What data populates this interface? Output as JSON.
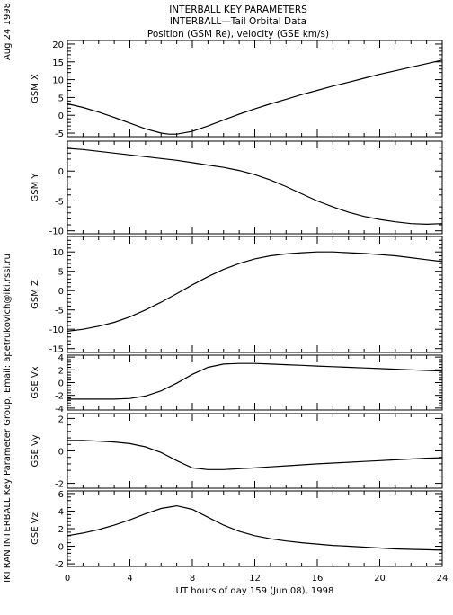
{
  "header": {
    "date_stamp": "Aug 24 1998",
    "side_credit": "IKI RAN INTERBALL Key Parameter Group, Email: apetrukovich@iki.rssi.ru"
  },
  "chart_data": [
    {
      "type": "line",
      "title": [
        "INTERBALL KEY PARAMETERS",
        "INTERBALL—Tail Orbital Data",
        "Position (GSM Re), velocity (GSE km/s)"
      ],
      "ylabel": "GSM X",
      "ylim": [
        -6,
        21
      ],
      "yticks": [
        -5,
        0,
        5,
        10,
        15,
        20
      ],
      "xlim": [
        0,
        24
      ],
      "series": [
        {
          "x": [
            0,
            1,
            2,
            3,
            4,
            5,
            6,
            6.5,
            7,
            8,
            9,
            10,
            11,
            12,
            13,
            14,
            15,
            16,
            17,
            18,
            19,
            20,
            21,
            22,
            23,
            24
          ],
          "y": [
            3.2,
            2.2,
            0.9,
            -0.6,
            -2.2,
            -3.8,
            -5.0,
            -5.3,
            -5.3,
            -4.5,
            -3.0,
            -1.3,
            0.3,
            1.8,
            3.2,
            4.5,
            5.8,
            7.0,
            8.2,
            9.3,
            10.4,
            11.5,
            12.5,
            13.5,
            14.5,
            15.5
          ]
        }
      ]
    },
    {
      "type": "line",
      "ylabel": "GSM Y",
      "ylim": [
        -10.5,
        5
      ],
      "yticks": [
        -10,
        -5,
        0
      ],
      "xlim": [
        0,
        24
      ],
      "series": [
        {
          "x": [
            0,
            1,
            2,
            3,
            4,
            5,
            6,
            7,
            8,
            9,
            10,
            11,
            12,
            13,
            14,
            15,
            16,
            17,
            18,
            19,
            20,
            21,
            22,
            23,
            24
          ],
          "y": [
            3.8,
            3.6,
            3.3,
            3.0,
            2.7,
            2.4,
            2.1,
            1.8,
            1.4,
            1.0,
            0.6,
            0.1,
            -0.6,
            -1.5,
            -2.6,
            -3.8,
            -5.0,
            -6.0,
            -6.9,
            -7.6,
            -8.1,
            -8.5,
            -8.8,
            -8.9,
            -8.8
          ]
        }
      ]
    },
    {
      "type": "line",
      "ylabel": "GSM Z",
      "ylim": [
        -16,
        14
      ],
      "yticks": [
        -15,
        -10,
        -5,
        0,
        5,
        10
      ],
      "xlim": [
        0,
        24
      ],
      "series": [
        {
          "x": [
            0,
            1,
            2,
            3,
            4,
            5,
            6,
            7,
            8,
            9,
            10,
            11,
            12,
            13,
            14,
            15,
            16,
            17,
            18,
            19,
            20,
            21,
            22,
            23,
            24
          ],
          "y": [
            -10.5,
            -10.0,
            -9.2,
            -8.2,
            -6.8,
            -5.0,
            -3.0,
            -0.8,
            1.5,
            3.6,
            5.5,
            7.0,
            8.2,
            9.0,
            9.5,
            9.8,
            10.0,
            10.0,
            9.8,
            9.6,
            9.3,
            9.0,
            8.5,
            8.0,
            7.5
          ]
        }
      ]
    },
    {
      "type": "line",
      "ylabel": "GSE Vx",
      "ylim": [
        -4.3,
        4.3
      ],
      "yticks": [
        -4,
        -2,
        0,
        2,
        4
      ],
      "xlim": [
        0,
        24
      ],
      "series": [
        {
          "x": [
            0,
            1,
            2,
            3,
            4,
            5,
            6,
            7,
            8,
            9,
            10,
            11,
            12,
            13,
            14,
            15,
            16,
            17,
            18,
            19,
            20,
            21,
            22,
            23,
            24
          ],
          "y": [
            -2.6,
            -2.6,
            -2.6,
            -2.6,
            -2.5,
            -2.1,
            -1.3,
            -0.1,
            1.3,
            2.4,
            2.9,
            3.0,
            3.0,
            2.9,
            2.8,
            2.7,
            2.6,
            2.5,
            2.4,
            2.3,
            2.2,
            2.1,
            2.0,
            1.9,
            1.8
          ]
        }
      ]
    },
    {
      "type": "line",
      "ylabel": "GSE Vy",
      "ylim": [
        -2.3,
        2.3
      ],
      "yticks": [
        -2,
        0,
        2
      ],
      "xlim": [
        0,
        24
      ],
      "series": [
        {
          "x": [
            0,
            1,
            2,
            3,
            4,
            5,
            6,
            7,
            8,
            9,
            10,
            11,
            12,
            13,
            14,
            15,
            16,
            17,
            18,
            19,
            20,
            21,
            22,
            23,
            24
          ],
          "y": [
            0.65,
            0.65,
            0.6,
            0.55,
            0.45,
            0.25,
            -0.1,
            -0.6,
            -1.05,
            -1.15,
            -1.15,
            -1.1,
            -1.05,
            -0.98,
            -0.92,
            -0.86,
            -0.8,
            -0.75,
            -0.7,
            -0.65,
            -0.6,
            -0.55,
            -0.5,
            -0.45,
            -0.42
          ]
        }
      ]
    },
    {
      "type": "line",
      "ylabel": "GSE Vz",
      "xlabel": "UT hours of day 159 (Jun 08), 1998",
      "ylim": [
        -2.3,
        6.3
      ],
      "yticks": [
        -2,
        0,
        2,
        4,
        6
      ],
      "xlim": [
        0,
        24
      ],
      "xticks": [
        0,
        4,
        8,
        12,
        16,
        20,
        24
      ],
      "series": [
        {
          "x": [
            0,
            1,
            2,
            3,
            4,
            5,
            6,
            7,
            8,
            9,
            10,
            11,
            12,
            13,
            14,
            15,
            16,
            17,
            18,
            19,
            20,
            21,
            22,
            23,
            24
          ],
          "y": [
            1.2,
            1.5,
            1.9,
            2.4,
            3.0,
            3.7,
            4.3,
            4.6,
            4.2,
            3.3,
            2.4,
            1.7,
            1.2,
            0.85,
            0.6,
            0.4,
            0.25,
            0.1,
            0.0,
            -0.1,
            -0.2,
            -0.3,
            -0.35,
            -0.4,
            -0.45
          ]
        }
      ]
    }
  ]
}
